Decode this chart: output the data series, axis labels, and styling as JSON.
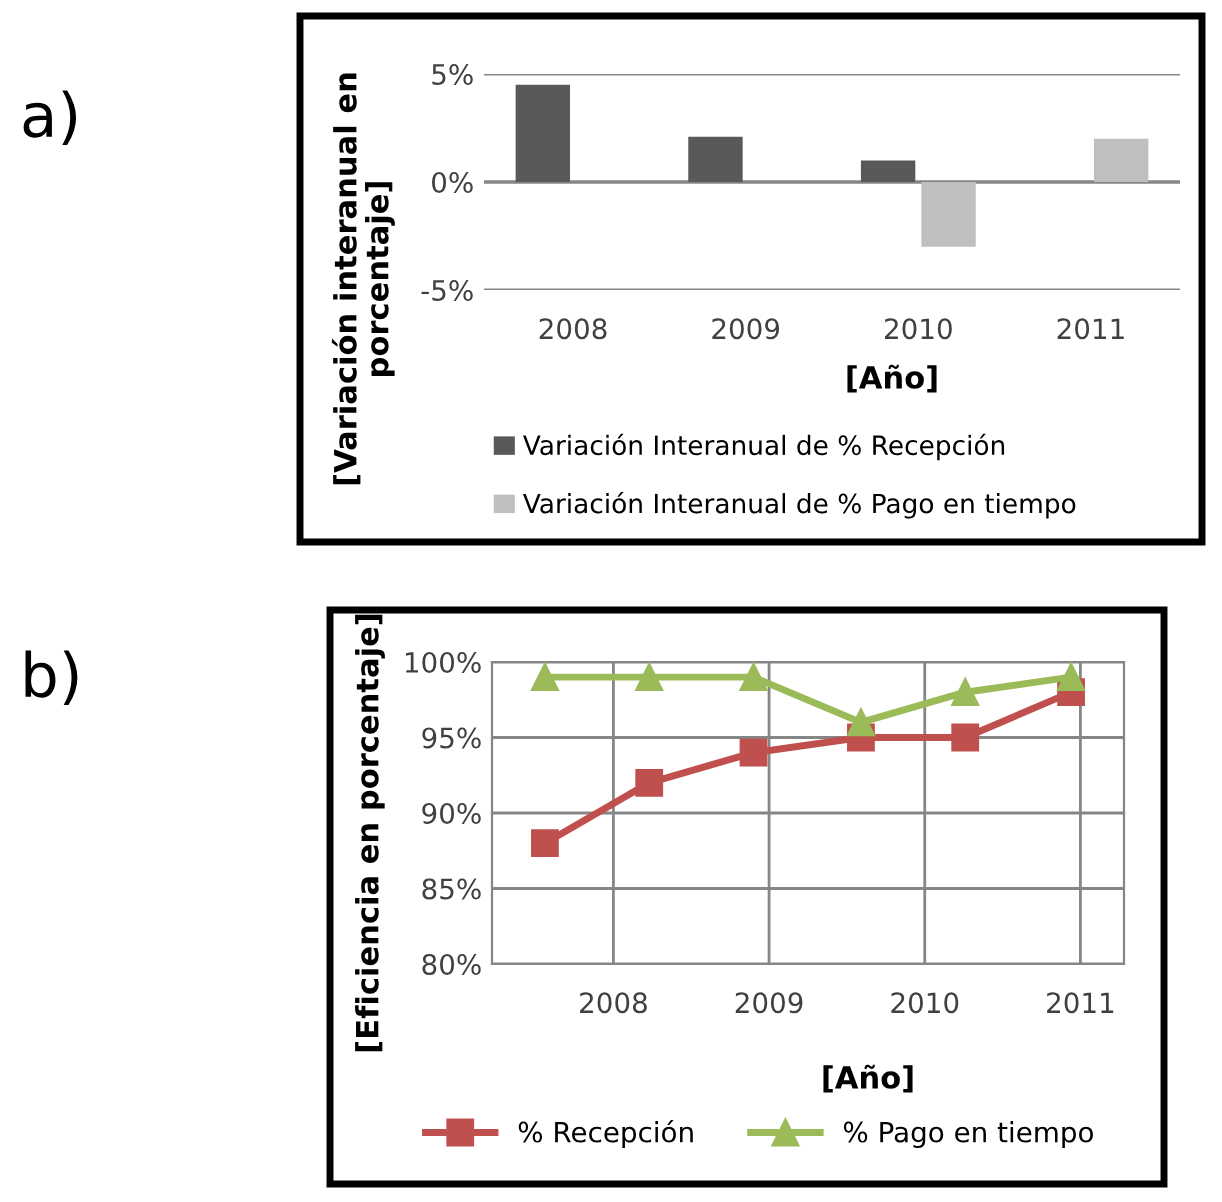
{
  "chart_data": [
    {
      "type": "bar",
      "categories": [
        "2008",
        "2009",
        "2010",
        "2011"
      ],
      "xlabel": "[Año]",
      "ylabel": "[Variación interanual en porcentaje]",
      "series": [
        {
          "name": "Variación Interanual de % Recepción",
          "color": "#595959",
          "values": [
            4.5,
            2.1,
            1.0,
            null
          ]
        },
        {
          "name": "Variación Interanual de % Pago en tiempo",
          "color": "#bfbfbf",
          "values": [
            null,
            null,
            -3.0,
            2.0
          ]
        }
      ],
      "ylim": [
        -5,
        5
      ],
      "yticks": [
        {
          "value": -5,
          "label": "-5%"
        },
        {
          "value": 0,
          "label": "0%"
        },
        {
          "value": 5,
          "label": "5%"
        }
      ],
      "grid": "y",
      "legend": "bottom",
      "annotations": [
        "a)"
      ]
    },
    {
      "type": "line",
      "xlabel": "[Año]",
      "ylabel": "[Eficiencia en porcentaje]",
      "series": [
        {
          "name": "% Recepción",
          "color": "#c0504d",
          "marker": "square",
          "x": [
            2007.56,
            2008.23,
            2008.9,
            2009.59,
            2010.26,
            2010.94
          ],
          "values": [
            88,
            92,
            94,
            95,
            95,
            98
          ]
        },
        {
          "name": "% Pago en tiempo",
          "color": "#9bbb59",
          "marker": "triangle",
          "x": [
            2007.56,
            2008.23,
            2008.9,
            2009.59,
            2010.26,
            2010.94
          ],
          "values": [
            99,
            99,
            99,
            96,
            98,
            99
          ]
        }
      ],
      "xlim": [
        2007.22,
        2011.28
      ],
      "xticks": [
        2008,
        2009,
        2010,
        2011
      ],
      "ylim": [
        80,
        100
      ],
      "yticks": [
        {
          "value": 80,
          "label": "80%"
        },
        {
          "value": 85,
          "label": "85%"
        },
        {
          "value": 90,
          "label": "90%"
        },
        {
          "value": 95,
          "label": "95%"
        },
        {
          "value": 100,
          "label": "100%"
        }
      ],
      "grid": true,
      "legend": "bottom",
      "annotations": [
        "b)"
      ]
    }
  ]
}
